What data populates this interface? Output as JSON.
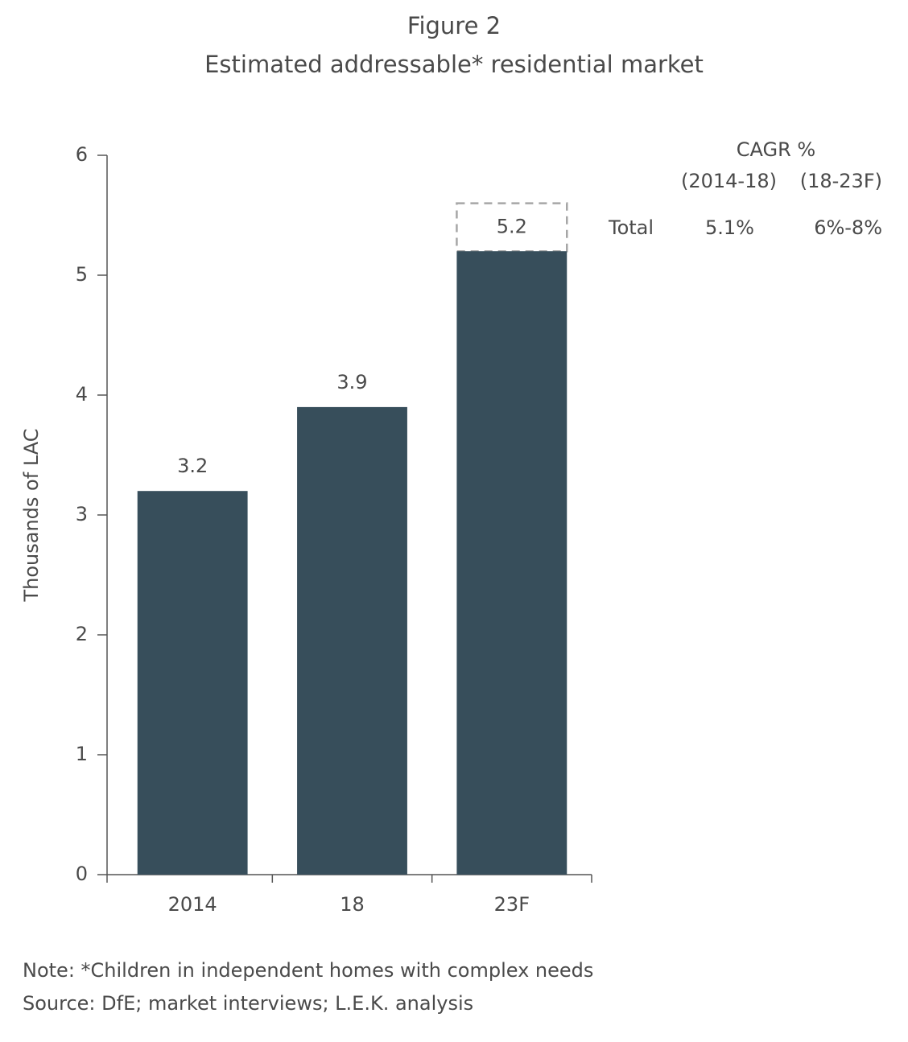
{
  "chart_data": {
    "type": "bar",
    "title": "Figure 2",
    "subtitle": "Estimated addressable* residential market",
    "ylabel": "Thousands of LAC",
    "categories": [
      "2014",
      "18",
      "23F"
    ],
    "values": [
      3.2,
      3.9,
      5.2
    ],
    "forecast_range_top": [
      null,
      null,
      5.6
    ],
    "color": "#374e5b",
    "range_color": "#a6a6a6",
    "ylim": [
      0,
      6
    ],
    "yticks": [
      0,
      1,
      2,
      3,
      4,
      5,
      6
    ],
    "grid": false,
    "cagr_table": {
      "title": "CAGR %",
      "columns": [
        "(2014-18)",
        "(18-23F)"
      ],
      "row_label": "Total",
      "row": [
        "5.1%",
        "6%-8%"
      ]
    },
    "note": "Note: *Children in independent homes with complex needs",
    "source": "Source: DfE; market interviews; L.E.K. analysis"
  }
}
